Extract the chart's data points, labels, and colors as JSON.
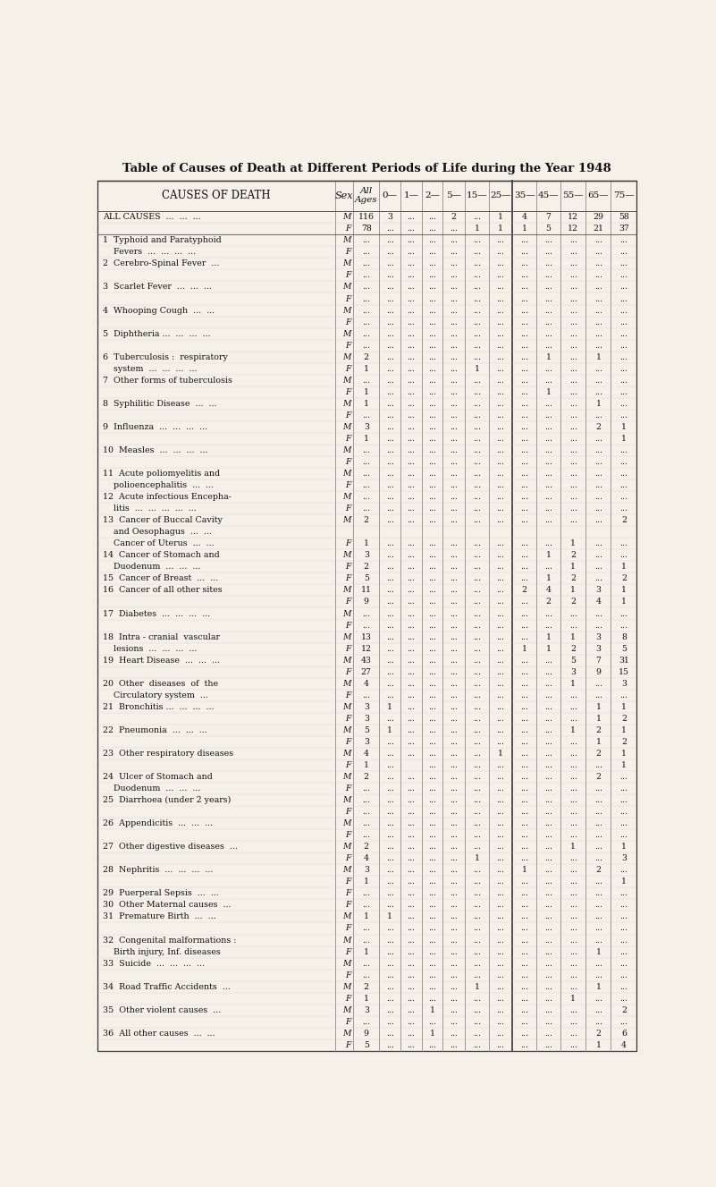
{
  "title": "Table of Causes of Death at Different Periods of Life during the Year 1948",
  "bg_color": "#f5f0e8",
  "rows": [
    [
      "ALL CAUSES  ...  ...  ...",
      "M",
      "116",
      "3",
      "...",
      "...",
      "2",
      "...",
      "1",
      "4",
      "7",
      "12",
      "29",
      "58"
    ],
    [
      "",
      "F",
      "78",
      "...",
      "...",
      "...",
      "...",
      "1",
      "1",
      "1",
      "5",
      "12",
      "21",
      "37"
    ],
    [
      "1  Typhoid and Paratyphoid",
      "M",
      "...",
      "...",
      "...",
      "...",
      "...",
      "...",
      "...",
      "...",
      "...",
      "...",
      "...",
      "..."
    ],
    [
      "    Fevers  ...  ...  ...  ...",
      "F",
      "...",
      "...",
      "...",
      "...",
      "...",
      "...",
      "...",
      "...",
      "...",
      "...",
      "...",
      "..."
    ],
    [
      "2  Cerebro-Spinal Fever  ...",
      "M",
      "...",
      "...",
      "...",
      "...",
      "...",
      "...",
      "...",
      "...",
      "...",
      "...",
      "...",
      "..."
    ],
    [
      "",
      "F",
      "...",
      "...",
      "...",
      "...",
      "...",
      "...",
      "...",
      "...",
      "...",
      "...",
      "...",
      "..."
    ],
    [
      "3  Scarlet Fever  ...  ...  ...",
      "M",
      "...",
      "...",
      "...",
      "...",
      "...",
      "...",
      "...",
      "...",
      "...",
      "...",
      "...",
      "..."
    ],
    [
      "",
      "F",
      "...",
      "...",
      "...",
      "...",
      "...",
      "...",
      "...",
      "...",
      "...",
      "...",
      "...",
      "..."
    ],
    [
      "4  Whooping Cough  ...  ...",
      "M",
      "...",
      "...",
      "...",
      "...",
      "...",
      "...",
      "...",
      "...",
      "...",
      "...",
      "...",
      "..."
    ],
    [
      "",
      "F",
      "...",
      "...",
      "...",
      "...",
      "...",
      "...",
      "...",
      "...",
      "...",
      "...",
      "...",
      "..."
    ],
    [
      "5  Diphtheria ...  ...  ...  ...",
      "M",
      "...",
      "...",
      "...",
      "...",
      "...",
      "...",
      "...",
      "...",
      "...",
      "...",
      "...",
      "..."
    ],
    [
      "",
      "F",
      "...",
      "...",
      "...",
      "...",
      "...",
      "...",
      "...",
      "...",
      "...",
      "...",
      "...",
      "..."
    ],
    [
      "6  Tuberculosis :  respiratory",
      "M",
      "2",
      "...",
      "...",
      "...",
      "...",
      "...",
      "...",
      "...",
      "1",
      "...",
      "1",
      "..."
    ],
    [
      "    system  ...  ...  ...  ...",
      "F",
      "1",
      "...",
      "...",
      "...",
      "...",
      "1",
      "...",
      "...",
      "...",
      "...",
      "...",
      "..."
    ],
    [
      "7  Other forms of tuberculosis",
      "M",
      "...",
      "...",
      "...",
      "...",
      "...",
      "...",
      "...",
      "...",
      "...",
      "...",
      "...",
      "..."
    ],
    [
      "",
      "F",
      "1",
      "...",
      "...",
      "...",
      "...",
      "...",
      "...",
      "...",
      "1",
      "...",
      "...",
      "..."
    ],
    [
      "8  Syphilitic Disease  ...  ...",
      "M",
      "1",
      "...",
      "...",
      "...",
      "...",
      "...",
      "...",
      "...",
      "...",
      "...",
      "1",
      "..."
    ],
    [
      "",
      "F",
      "...",
      "...",
      "...",
      "...",
      "...",
      "...",
      "...",
      "...",
      "...",
      "...",
      "...",
      "..."
    ],
    [
      "9  Influenza  ...  ...  ...  ...",
      "M",
      "3",
      "...",
      "...",
      "...",
      "...",
      "...",
      "...",
      "...",
      "...",
      "...",
      "2",
      "1"
    ],
    [
      "",
      "F",
      "1",
      "...",
      "...",
      "...",
      "...",
      "...",
      "...",
      "...",
      "...",
      "...",
      "...",
      "1"
    ],
    [
      "10  Measles  ...  ...  ...  ...",
      "M",
      "...",
      "...",
      "...",
      "...",
      "...",
      "...",
      "...",
      "...",
      "...",
      "...",
      "...",
      "..."
    ],
    [
      "",
      "F",
      "...",
      "...",
      "...",
      "...",
      "...",
      "...",
      "...",
      "...",
      "...",
      "...",
      "...",
      "..."
    ],
    [
      "11  Acute poliomyelitis and",
      "M",
      "...",
      "...",
      "...",
      "...",
      "...",
      "...",
      "...",
      "...",
      "...",
      "...",
      "...",
      "..."
    ],
    [
      "    polioencephalitis  ...  ...",
      "F",
      "...",
      "...",
      "...",
      "...",
      "...",
      "...",
      "...",
      "...",
      "...",
      "...",
      "...",
      "..."
    ],
    [
      "12  Acute infectious Encepha-",
      "M",
      "...",
      "...",
      "...",
      "...",
      "...",
      "...",
      "...",
      "...",
      "...",
      "...",
      "...",
      "..."
    ],
    [
      "    litis  ...  ...  ...  ...  ...",
      "F",
      "...",
      "...",
      "...",
      "...",
      "...",
      "...",
      "...",
      "...",
      "...",
      "...",
      "...",
      "..."
    ],
    [
      "13  Cancer of Buccal Cavity",
      "M",
      "2",
      "...",
      "...",
      "...",
      "...",
      "...",
      "...",
      "...",
      "...",
      "...",
      "...",
      "2"
    ],
    [
      "    and Oesophagus  ...  ...",
      "",
      "",
      "",
      "",
      "",
      "",
      "",
      "",
      "",
      "",
      "",
      "",
      ""
    ],
    [
      "    Cancer of Uterus  ...  ...",
      "F",
      "1",
      "...",
      "...",
      "...",
      "...",
      "...",
      "...",
      "...",
      "...",
      "1",
      "...",
      "..."
    ],
    [
      "14  Cancer of Stomach and",
      "M",
      "3",
      "...",
      "...",
      "...",
      "...",
      "...",
      "...",
      "...",
      "1",
      "2",
      "...",
      "..."
    ],
    [
      "    Duodenum  ...  ...  ...",
      "F",
      "2",
      "...",
      "...",
      "...",
      "...",
      "...",
      "...",
      "...",
      "...",
      "1",
      "...",
      "1"
    ],
    [
      "15  Cancer of Breast  ...  ...",
      "F",
      "5",
      "...",
      "...",
      "...",
      "...",
      "...",
      "...",
      "...",
      "1",
      "2",
      "...",
      "2"
    ],
    [
      "16  Cancer of all other sites",
      "M",
      "11",
      "...",
      "...",
      "...",
      "...",
      "...",
      "...",
      "2",
      "4",
      "1",
      "3",
      "1"
    ],
    [
      "",
      "F",
      "9",
      "...",
      "...",
      "...",
      "...",
      "...",
      "...",
      "...",
      "2",
      "2",
      "4",
      "1"
    ],
    [
      "17  Diabetes  ...  ...  ...  ...",
      "M",
      "...",
      "...",
      "...",
      "...",
      "...",
      "...",
      "...",
      "...",
      "...",
      "...",
      "...",
      "..."
    ],
    [
      "",
      "F",
      "...",
      "...",
      "...",
      "...",
      "...",
      "...",
      "...",
      "...",
      "...",
      "...",
      "...",
      "..."
    ],
    [
      "18  Intra - cranial  vascular",
      "M",
      "13",
      "...",
      "...",
      "...",
      "...",
      "...",
      "...",
      "...",
      "1",
      "1",
      "3",
      "8"
    ],
    [
      "    lesions  ...  ...  ...  ...",
      "F",
      "12",
      "...",
      "...",
      "...",
      "...",
      "...",
      "...",
      "1",
      "1",
      "2",
      "3",
      "5"
    ],
    [
      "19  Heart Disease  ...  ...  ...",
      "M",
      "43",
      "...",
      "...",
      "...",
      "...",
      "...",
      "...",
      "...",
      "...",
      "5",
      "7",
      "31"
    ],
    [
      "",
      "F",
      "27",
      "...",
      "...",
      "...",
      "...",
      "...",
      "...",
      "...",
      "...",
      "3",
      "9",
      "15"
    ],
    [
      "20  Other  diseases  of  the",
      "M",
      "4",
      "...",
      "...",
      "...",
      "...",
      "...",
      "...",
      "...",
      "...",
      "1",
      "...",
      "3"
    ],
    [
      "    Circulatory system  ...",
      "F",
      "...",
      "...",
      "...",
      "...",
      "...",
      "...",
      "...",
      "...",
      "...",
      "...",
      "...",
      "..."
    ],
    [
      "21  Bronchitis ...  ...  ...  ...",
      "M",
      "3",
      "1",
      "...",
      "...",
      "...",
      "...",
      "...",
      "...",
      "...",
      "...",
      "1",
      "1"
    ],
    [
      "",
      "F",
      "3",
      "...",
      "...",
      "...",
      "...",
      "...",
      "...",
      "...",
      "...",
      "...",
      "1",
      "2"
    ],
    [
      "22  Pneumonia  ...  ...  ...",
      "M",
      "5",
      "1",
      "...",
      "...",
      "...",
      "...",
      "...",
      "...",
      "...",
      "1",
      "2",
      "1"
    ],
    [
      "",
      "F",
      "3",
      "...",
      "...",
      "...",
      "...",
      "...",
      "...",
      "...",
      "...",
      "...",
      "1",
      "2"
    ],
    [
      "23  Other respiratory diseases",
      "M",
      "4",
      "...",
      "...",
      "...",
      "...",
      "...",
      "1",
      "...",
      "...",
      "...",
      "2",
      "1"
    ],
    [
      "",
      "F",
      "1",
      "...",
      "",
      "...",
      "...",
      "...",
      "...",
      "...",
      "...",
      "...",
      "...",
      "1"
    ],
    [
      "24  Ulcer of Stomach and",
      "M",
      "2",
      "...",
      "...",
      "...",
      "...",
      "...",
      "...",
      "...",
      "...",
      "...",
      "2",
      "..."
    ],
    [
      "    Duodenum  ...  ...  ...",
      "F",
      "...",
      "...",
      "...",
      "...",
      "...",
      "...",
      "...",
      "...",
      "...",
      "...",
      "...",
      "..."
    ],
    [
      "25  Diarrhoea (under 2 years)",
      "M",
      "...",
      "...",
      "...",
      "...",
      "...",
      "...",
      "...",
      "...",
      "...",
      "...",
      "...",
      "..."
    ],
    [
      "",
      "F",
      "...",
      "...",
      "...",
      "...",
      "...",
      "...",
      "...",
      "...",
      "...",
      "...",
      "...",
      "..."
    ],
    [
      "26  Appendicitis  ...  ...  ...",
      "M",
      "...",
      "...",
      "...",
      "...",
      "...",
      "...",
      "...",
      "...",
      "...",
      "...",
      "...",
      "..."
    ],
    [
      "",
      "F",
      "...",
      "...",
      "...",
      "...",
      "...",
      "...",
      "...",
      "...",
      "...",
      "...",
      "...",
      "..."
    ],
    [
      "27  Other digestive diseases  ...",
      "M",
      "2",
      "...",
      "...",
      "...",
      "...",
      "...",
      "...",
      "...",
      "...",
      "1",
      "...",
      "1"
    ],
    [
      "",
      "F",
      "4",
      "...",
      "...",
      "...",
      "...",
      "1",
      "...",
      "...",
      "...",
      "...",
      "...",
      "3"
    ],
    [
      "28  Nephritis  ...  ...  ...  ...",
      "M",
      "3",
      "...",
      "...",
      "...",
      "...",
      "...",
      "...",
      "1",
      "...",
      "...",
      "2",
      "..."
    ],
    [
      "",
      "F",
      "1",
      "...",
      "...",
      "...",
      "...",
      "...",
      "...",
      "...",
      "...",
      "...",
      "...",
      "1"
    ],
    [
      "29  Puerperal Sepsis  ...  ...",
      "F",
      "...",
      "...",
      "...",
      "...",
      "...",
      "...",
      "...",
      "...",
      "...",
      "...",
      "...",
      "..."
    ],
    [
      "30  Other Maternal causes  ...",
      "F",
      "...",
      "...",
      "...",
      "...",
      "...",
      "...",
      "...",
      "...",
      "...",
      "...",
      "...",
      "..."
    ],
    [
      "31  Premature Birth  ...  ...",
      "M",
      "1",
      "1",
      "...",
      "...",
      "...",
      "...",
      "...",
      "...",
      "...",
      "...",
      "...",
      "..."
    ],
    [
      "",
      "F",
      "...",
      "...",
      "...",
      "...",
      "...",
      "...",
      "...",
      "...",
      "...",
      "...",
      "...",
      "..."
    ],
    [
      "32  Congenital malformations :",
      "M",
      "...",
      "...",
      "...",
      "...",
      "...",
      "...",
      "...",
      "...",
      "...",
      "...",
      "...",
      "..."
    ],
    [
      "    Birth injury, Inf. diseases",
      "F",
      "1",
      "...",
      "...",
      "...",
      "...",
      "...",
      "...",
      "...",
      "...",
      "...",
      "1",
      "..."
    ],
    [
      "33  Suicide  ...  ...  ...  ...",
      "M",
      "...",
      "...",
      "...",
      "...",
      "...",
      "...",
      "...",
      "...",
      "...",
      "...",
      "...",
      "..."
    ],
    [
      "",
      "F",
      "...",
      "...",
      "...",
      "...",
      "...",
      "...",
      "...",
      "...",
      "...",
      "...",
      "...",
      "..."
    ],
    [
      "34  Road Traffic Accidents  ...",
      "M",
      "2",
      "...",
      "...",
      "...",
      "...",
      "1",
      "...",
      "...",
      "...",
      "...",
      "1",
      "..."
    ],
    [
      "",
      "F",
      "1",
      "...",
      "...",
      "...",
      "...",
      "...",
      "...",
      "...",
      "...",
      "1",
      "...",
      "..."
    ],
    [
      "35  Other violent causes  ...",
      "M",
      "3",
      "...",
      "...",
      "1",
      "...",
      "...",
      "...",
      "...",
      "...",
      "...",
      "...",
      "2"
    ],
    [
      "",
      "F",
      "...",
      "...",
      "...",
      "...",
      "...",
      "...",
      "...",
      "...",
      "...",
      "...",
      "...",
      "..."
    ],
    [
      "36  All other causes  ...  ...",
      "M",
      "9",
      "...",
      "...",
      "1",
      "...",
      "...",
      "...",
      "...",
      "...",
      "...",
      "2",
      "6"
    ],
    [
      "",
      "F",
      "5",
      "...",
      "...",
      "...",
      "...",
      "...",
      "...",
      "...",
      "...",
      "...",
      "1",
      "4"
    ]
  ]
}
